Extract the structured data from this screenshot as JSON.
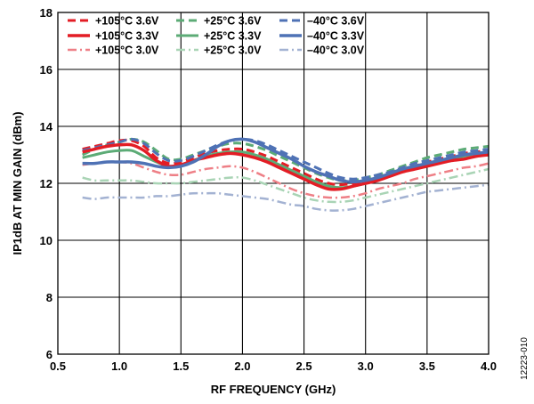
{
  "figure_id": "12223-010",
  "chart_data": {
    "type": "line",
    "title": "",
    "xlabel": "RF FREQUENCY (GHz)",
    "ylabel": "IP1dB AT MIN GAIN (dBm)",
    "xlim": [
      0.5,
      4.0
    ],
    "ylim": [
      6,
      18
    ],
    "x_ticks": [
      0.5,
      1.0,
      1.5,
      2.0,
      2.5,
      3.0,
      3.5,
      4.0
    ],
    "x_tick_labels": [
      "0.5",
      "1.0",
      "1.5",
      "2.0",
      "2.5",
      "3.0",
      "3.5",
      "4.0"
    ],
    "y_ticks": [
      6,
      8,
      10,
      12,
      14,
      16,
      18
    ],
    "y_tick_labels": [
      "6",
      "8",
      "10",
      "12",
      "14",
      "16",
      "18"
    ],
    "grid": true,
    "legend_position": "top-left",
    "x": [
      0.7,
      0.8,
      0.9,
      1.0,
      1.1,
      1.2,
      1.3,
      1.4,
      1.5,
      1.6,
      1.7,
      1.8,
      1.9,
      2.0,
      2.1,
      2.2,
      2.3,
      2.4,
      2.5,
      2.6,
      2.7,
      2.8,
      2.9,
      3.0,
      3.1,
      3.2,
      3.3,
      3.4,
      3.5,
      3.6,
      3.7,
      3.8,
      3.9,
      4.0
    ],
    "series": [
      {
        "name": "+105°C 3.6V",
        "color": "#e31d25",
        "dash": "dash",
        "width": 3,
        "values": [
          13.2,
          13.3,
          13.4,
          13.5,
          13.5,
          13.3,
          12.9,
          12.7,
          12.75,
          12.9,
          13.05,
          13.15,
          13.2,
          13.2,
          13.1,
          12.95,
          12.75,
          12.55,
          12.35,
          12.15,
          12.0,
          11.95,
          12.0,
          12.1,
          12.2,
          12.35,
          12.5,
          12.6,
          12.75,
          12.85,
          12.95,
          13.05,
          13.1,
          13.15
        ]
      },
      {
        "name": "+105°C 3.3V",
        "color": "#e31d25",
        "dash": "solid",
        "width": 3.5,
        "values": [
          13.1,
          13.2,
          13.3,
          13.35,
          13.35,
          13.15,
          12.8,
          12.6,
          12.65,
          12.8,
          12.9,
          13.0,
          13.05,
          13.0,
          12.9,
          12.75,
          12.55,
          12.35,
          12.15,
          11.95,
          11.8,
          11.8,
          11.9,
          12.0,
          12.1,
          12.25,
          12.4,
          12.5,
          12.6,
          12.7,
          12.8,
          12.85,
          12.95,
          13.0
        ]
      },
      {
        "name": "+105°C 3.0V",
        "color": "#ee7f86",
        "dash": "dashdot",
        "width": 2.5,
        "values": [
          12.65,
          12.7,
          12.75,
          12.75,
          12.7,
          12.55,
          12.4,
          12.3,
          12.3,
          12.4,
          12.5,
          12.55,
          12.6,
          12.55,
          12.4,
          12.2,
          12.0,
          11.8,
          11.65,
          11.55,
          11.5,
          11.5,
          11.55,
          11.65,
          11.8,
          11.9,
          12.0,
          12.15,
          12.25,
          12.35,
          12.45,
          12.55,
          12.6,
          12.7
        ]
      },
      {
        "name": "+25°C 3.6V",
        "color": "#5cab76",
        "dash": "dash",
        "width": 3,
        "values": [
          13.0,
          13.2,
          13.35,
          13.45,
          13.55,
          13.45,
          13.15,
          12.85,
          12.85,
          13.0,
          13.15,
          13.3,
          13.4,
          13.4,
          13.3,
          13.15,
          12.95,
          12.75,
          12.55,
          12.35,
          12.2,
          12.1,
          12.1,
          12.2,
          12.3,
          12.45,
          12.6,
          12.75,
          12.9,
          13.0,
          13.1,
          13.2,
          13.25,
          13.3
        ]
      },
      {
        "name": "+25°C 3.3V",
        "color": "#5cab76",
        "dash": "solid",
        "width": 3,
        "values": [
          12.9,
          13.0,
          13.1,
          13.15,
          13.15,
          12.95,
          12.75,
          12.6,
          12.65,
          12.8,
          12.95,
          13.05,
          13.1,
          13.1,
          13.0,
          12.85,
          12.65,
          12.45,
          12.25,
          12.05,
          11.9,
          11.85,
          11.9,
          12.0,
          12.15,
          12.3,
          12.45,
          12.55,
          12.65,
          12.75,
          12.85,
          12.95,
          13.05,
          13.1
        ]
      },
      {
        "name": "+25°C 3.0V",
        "color": "#a9d4b5",
        "dash": "dashdot",
        "width": 2.5,
        "values": [
          12.2,
          12.1,
          12.1,
          12.1,
          12.1,
          12.05,
          12.0,
          12.0,
          12.0,
          12.05,
          12.1,
          12.15,
          12.2,
          12.2,
          12.1,
          11.95,
          11.8,
          11.65,
          11.5,
          11.4,
          11.35,
          11.35,
          11.4,
          11.5,
          11.6,
          11.7,
          11.8,
          11.9,
          12.0,
          12.1,
          12.2,
          12.3,
          12.4,
          12.5
        ]
      },
      {
        "name": "–40°C 3.6V",
        "color": "#4f72b5",
        "dash": "dash",
        "width": 3,
        "values": [
          13.15,
          13.25,
          13.35,
          13.45,
          13.55,
          13.4,
          13.05,
          12.8,
          12.8,
          12.95,
          13.15,
          13.35,
          13.5,
          13.55,
          13.5,
          13.35,
          13.15,
          12.95,
          12.75,
          12.55,
          12.35,
          12.2,
          12.15,
          12.2,
          12.3,
          12.4,
          12.55,
          12.7,
          12.8,
          12.9,
          13.0,
          13.1,
          13.15,
          13.2
        ]
      },
      {
        "name": "–40°C 3.3V",
        "color": "#4f72b5",
        "dash": "solid",
        "width": 3.5,
        "values": [
          12.7,
          12.7,
          12.75,
          12.75,
          12.75,
          12.7,
          12.6,
          12.55,
          12.6,
          12.75,
          13.0,
          13.3,
          13.5,
          13.55,
          13.45,
          13.25,
          13.05,
          12.85,
          12.6,
          12.4,
          12.25,
          12.1,
          12.05,
          12.1,
          12.2,
          12.35,
          12.5,
          12.6,
          12.7,
          12.8,
          12.9,
          13.0,
          13.05,
          13.1
        ]
      },
      {
        "name": "–40°C 3.0V",
        "color": "#a3b2d2",
        "dash": "dashdot",
        "width": 2.5,
        "values": [
          11.5,
          11.45,
          11.5,
          11.5,
          11.5,
          11.5,
          11.55,
          11.55,
          11.6,
          11.65,
          11.65,
          11.65,
          11.6,
          11.55,
          11.5,
          11.45,
          11.35,
          11.25,
          11.2,
          11.1,
          11.05,
          11.05,
          11.1,
          11.2,
          11.3,
          11.4,
          11.5,
          11.6,
          11.7,
          11.75,
          11.8,
          11.85,
          11.9,
          11.95
        ]
      }
    ]
  }
}
